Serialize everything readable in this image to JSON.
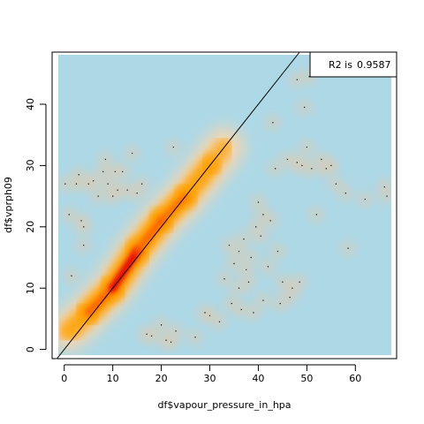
{
  "chart_data": {
    "type": "heatmap",
    "subtype": "smoothScatter",
    "xlabel": "df$vapour_pressure_in_hpa",
    "ylabel": "df$vprph09",
    "xlim": [
      -2.5,
      68.5
    ],
    "ylim": [
      -1.5,
      48.5
    ],
    "x_ticks": [
      0,
      10,
      20,
      30,
      40,
      50,
      60
    ],
    "y_ticks": [
      0,
      10,
      20,
      30,
      40
    ],
    "background_color": "#add8e6",
    "density_colors": [
      "#add8e6",
      "#ffd0a0",
      "#ffa000",
      "#ff6000",
      "#e00000"
    ],
    "reference_line": {
      "slope": 1,
      "intercept": 0
    },
    "legend": {
      "position": "top-right",
      "label": "R2 is",
      "value": "0.9587"
    },
    "density_ridge": {
      "x": [
        1,
        5,
        10,
        15,
        20,
        25,
        30,
        33
      ],
      "y": [
        3,
        6,
        10,
        16,
        21,
        25,
        30,
        33
      ],
      "intensity": [
        0.3,
        0.7,
        1.0,
        0.9,
        0.75,
        0.65,
        0.45,
        0.2
      ]
    },
    "outlier_points": [
      {
        "x": 0.2,
        "y": 27
      },
      {
        "x": 1,
        "y": 22
      },
      {
        "x": 1.5,
        "y": 12
      },
      {
        "x": 2.5,
        "y": 27
      },
      {
        "x": 3,
        "y": 28.5
      },
      {
        "x": 3.5,
        "y": 21
      },
      {
        "x": 4,
        "y": 20
      },
      {
        "x": 4,
        "y": 17
      },
      {
        "x": 5,
        "y": 27
      },
      {
        "x": 6,
        "y": 27.5
      },
      {
        "x": 7,
        "y": 25
      },
      {
        "x": 8,
        "y": 29
      },
      {
        "x": 8.5,
        "y": 31
      },
      {
        "x": 9,
        "y": 27
      },
      {
        "x": 10,
        "y": 25
      },
      {
        "x": 10.5,
        "y": 29
      },
      {
        "x": 11,
        "y": 26
      },
      {
        "x": 12,
        "y": 29
      },
      {
        "x": 13,
        "y": 26
      },
      {
        "x": 14,
        "y": 32
      },
      {
        "x": 15,
        "y": 25.5
      },
      {
        "x": 16,
        "y": 27
      },
      {
        "x": 17,
        "y": 2.5
      },
      {
        "x": 18,
        "y": 2.2
      },
      {
        "x": 20,
        "y": 4
      },
      {
        "x": 21,
        "y": 1.5
      },
      {
        "x": 22,
        "y": 1.2
      },
      {
        "x": 22.5,
        "y": 33
      },
      {
        "x": 23,
        "y": 3
      },
      {
        "x": 27,
        "y": 2
      },
      {
        "x": 29,
        "y": 6
      },
      {
        "x": 30,
        "y": 5.5
      },
      {
        "x": 32,
        "y": 4.5
      },
      {
        "x": 33,
        "y": 11.5
      },
      {
        "x": 34,
        "y": 17
      },
      {
        "x": 34.5,
        "y": 7.5
      },
      {
        "x": 35,
        "y": 14
      },
      {
        "x": 36,
        "y": 16
      },
      {
        "x": 36,
        "y": 10
      },
      {
        "x": 36.5,
        "y": 6.5
      },
      {
        "x": 37,
        "y": 18
      },
      {
        "x": 37.5,
        "y": 13
      },
      {
        "x": 38,
        "y": 11
      },
      {
        "x": 38.5,
        "y": 15
      },
      {
        "x": 39,
        "y": 6
      },
      {
        "x": 39.5,
        "y": 20
      },
      {
        "x": 40,
        "y": 24
      },
      {
        "x": 40.5,
        "y": 18.5
      },
      {
        "x": 41,
        "y": 22
      },
      {
        "x": 41,
        "y": 8
      },
      {
        "x": 42,
        "y": 13.5
      },
      {
        "x": 42.5,
        "y": 21
      },
      {
        "x": 43,
        "y": 37
      },
      {
        "x": 43.5,
        "y": 29.5
      },
      {
        "x": 44,
        "y": 16
      },
      {
        "x": 44.5,
        "y": 7.5
      },
      {
        "x": 45,
        "y": 11
      },
      {
        "x": 46,
        "y": 31
      },
      {
        "x": 46.5,
        "y": 8.5
      },
      {
        "x": 47,
        "y": 10
      },
      {
        "x": 48,
        "y": 30.5
      },
      {
        "x": 48.5,
        "y": 11
      },
      {
        "x": 49,
        "y": 30
      },
      {
        "x": 49.5,
        "y": 39.5
      },
      {
        "x": 50,
        "y": 33
      },
      {
        "x": 51,
        "y": 29.5
      },
      {
        "x": 52,
        "y": 22
      },
      {
        "x": 53,
        "y": 31
      },
      {
        "x": 54,
        "y": 29.5
      },
      {
        "x": 55,
        "y": 30
      },
      {
        "x": 56,
        "y": 27
      },
      {
        "x": 58,
        "y": 25.5
      },
      {
        "x": 58.5,
        "y": 16.5
      },
      {
        "x": 62,
        "y": 24.5
      },
      {
        "x": 66,
        "y": 26.5
      },
      {
        "x": 66.5,
        "y": 25
      },
      {
        "x": 48,
        "y": 44
      },
      {
        "x": 50.5,
        "y": 44.5
      }
    ]
  }
}
